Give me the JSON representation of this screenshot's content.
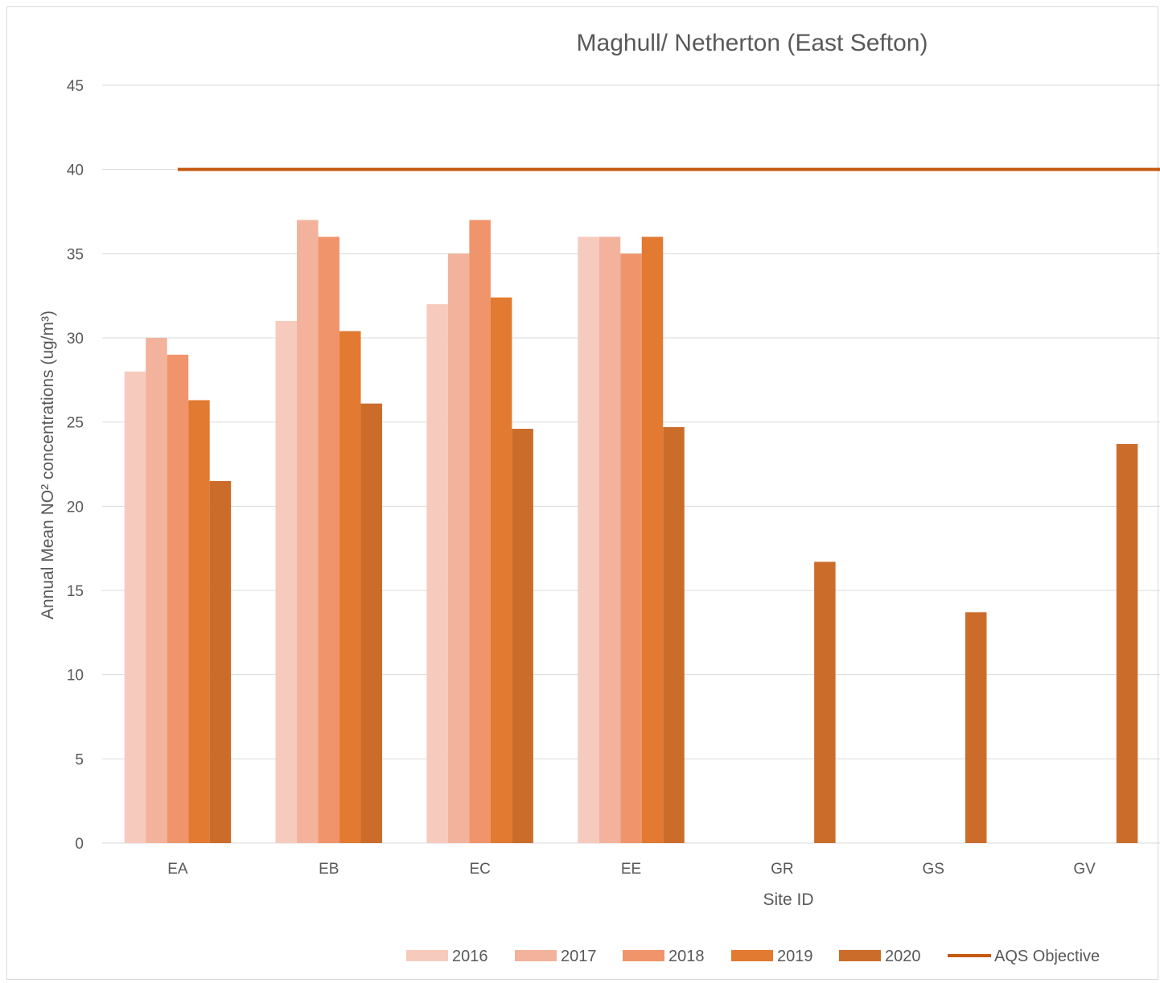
{
  "chart_data": {
    "type": "bar",
    "title": "Maghull/ Netherton (East Sefton)",
    "xlabel": "Site ID",
    "ylabel": "Annual Mean NO² concentrations (ug/m³)",
    "ylim": [
      0,
      45
    ],
    "yticks": [
      0,
      5,
      10,
      15,
      20,
      25,
      30,
      35,
      40,
      45
    ],
    "grid": true,
    "legend_position": "bottom",
    "categories": [
      "EA",
      "EB",
      "EC",
      "EE",
      "GR",
      "GS",
      "GV"
    ],
    "series": [
      {
        "name": "2016",
        "color": "#F6CBBD",
        "values": [
          28,
          31,
          32,
          36,
          null,
          null,
          null
        ]
      },
      {
        "name": "2017",
        "color": "#F3B29C",
        "values": [
          30,
          37,
          35,
          36,
          null,
          null,
          null
        ]
      },
      {
        "name": "2018",
        "color": "#F0956B",
        "values": [
          29,
          36,
          37,
          35,
          null,
          null,
          null
        ]
      },
      {
        "name": "2019",
        "color": "#E27A31",
        "values": [
          26.3,
          30.4,
          32.4,
          36,
          null,
          null,
          null
        ]
      },
      {
        "name": "2020",
        "color": "#CC6C2B",
        "values": [
          21.5,
          26.1,
          24.6,
          24.7,
          16.7,
          13.7,
          23.7
        ]
      }
    ],
    "reference_line": {
      "name": "AQS Objective",
      "value": 40,
      "color": "#C55A11"
    }
  }
}
